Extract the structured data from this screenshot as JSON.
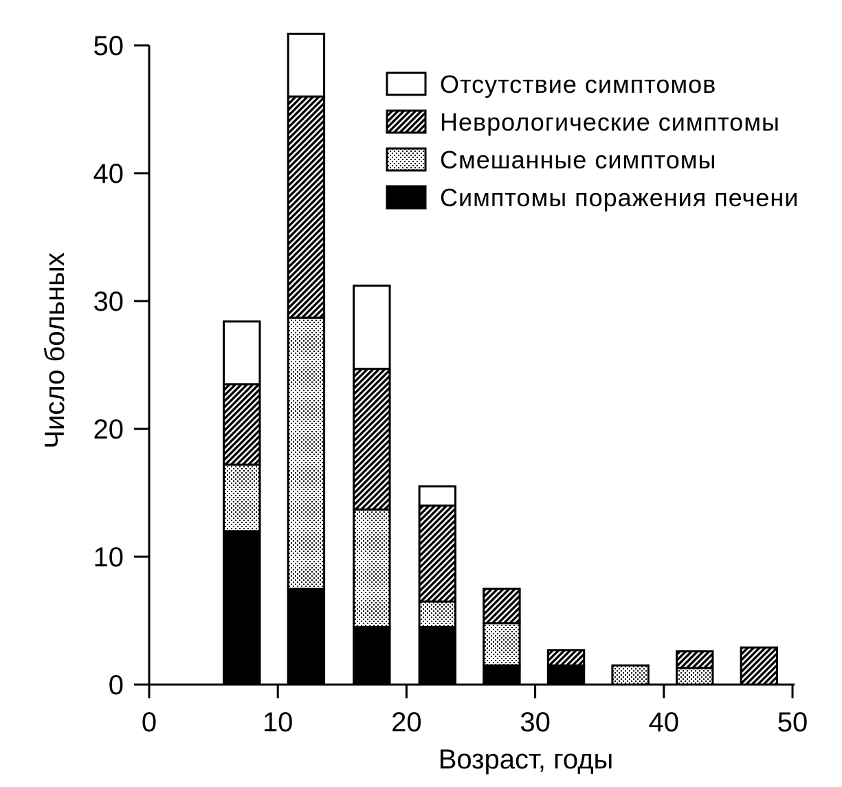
{
  "chart_data": {
    "type": "bar",
    "stacked": true,
    "xlabel": "Возраст, годы",
    "ylabel": "Число больных",
    "xlim": [
      0,
      50
    ],
    "ylim": [
      0,
      50
    ],
    "xticks": [
      0,
      10,
      20,
      30,
      40,
      50
    ],
    "yticks": [
      0,
      10,
      20,
      30,
      40,
      50
    ],
    "grid": false,
    "legend_position": "top-right",
    "bin_width": 2.8,
    "x": [
      7.2,
      12.2,
      17.3,
      22.4,
      27.4,
      32.4,
      37.4,
      42.4,
      47.4
    ],
    "series": [
      {
        "name": "Симптомы поражения печени",
        "pattern": "solid-black",
        "values": [
          12,
          7.5,
          4.5,
          4.5,
          1.5,
          1.5,
          0,
          0,
          0
        ]
      },
      {
        "name": "Смешанные симптомы",
        "pattern": "dots",
        "values": [
          5.2,
          21.2,
          9.2,
          2,
          3.3,
          0,
          1.5,
          1.3,
          0
        ]
      },
      {
        "name": "Неврологические симптомы",
        "pattern": "diagonal-hatch",
        "values": [
          6.3,
          17.3,
          11,
          7.5,
          2.7,
          1.2,
          0,
          1.3,
          2.9
        ]
      },
      {
        "name": "Отсутствие симптомов",
        "pattern": "white",
        "values": [
          4.9,
          4.9,
          6.5,
          1.5,
          0,
          0,
          0,
          0,
          0
        ]
      }
    ],
    "legend_order": [
      "Отсутствие симптомов",
      "Неврологические симптомы",
      "Смешанные симптомы",
      "Симптомы поражения печени"
    ],
    "colors": {
      "ink": "#000000",
      "background": "#ffffff"
    }
  }
}
